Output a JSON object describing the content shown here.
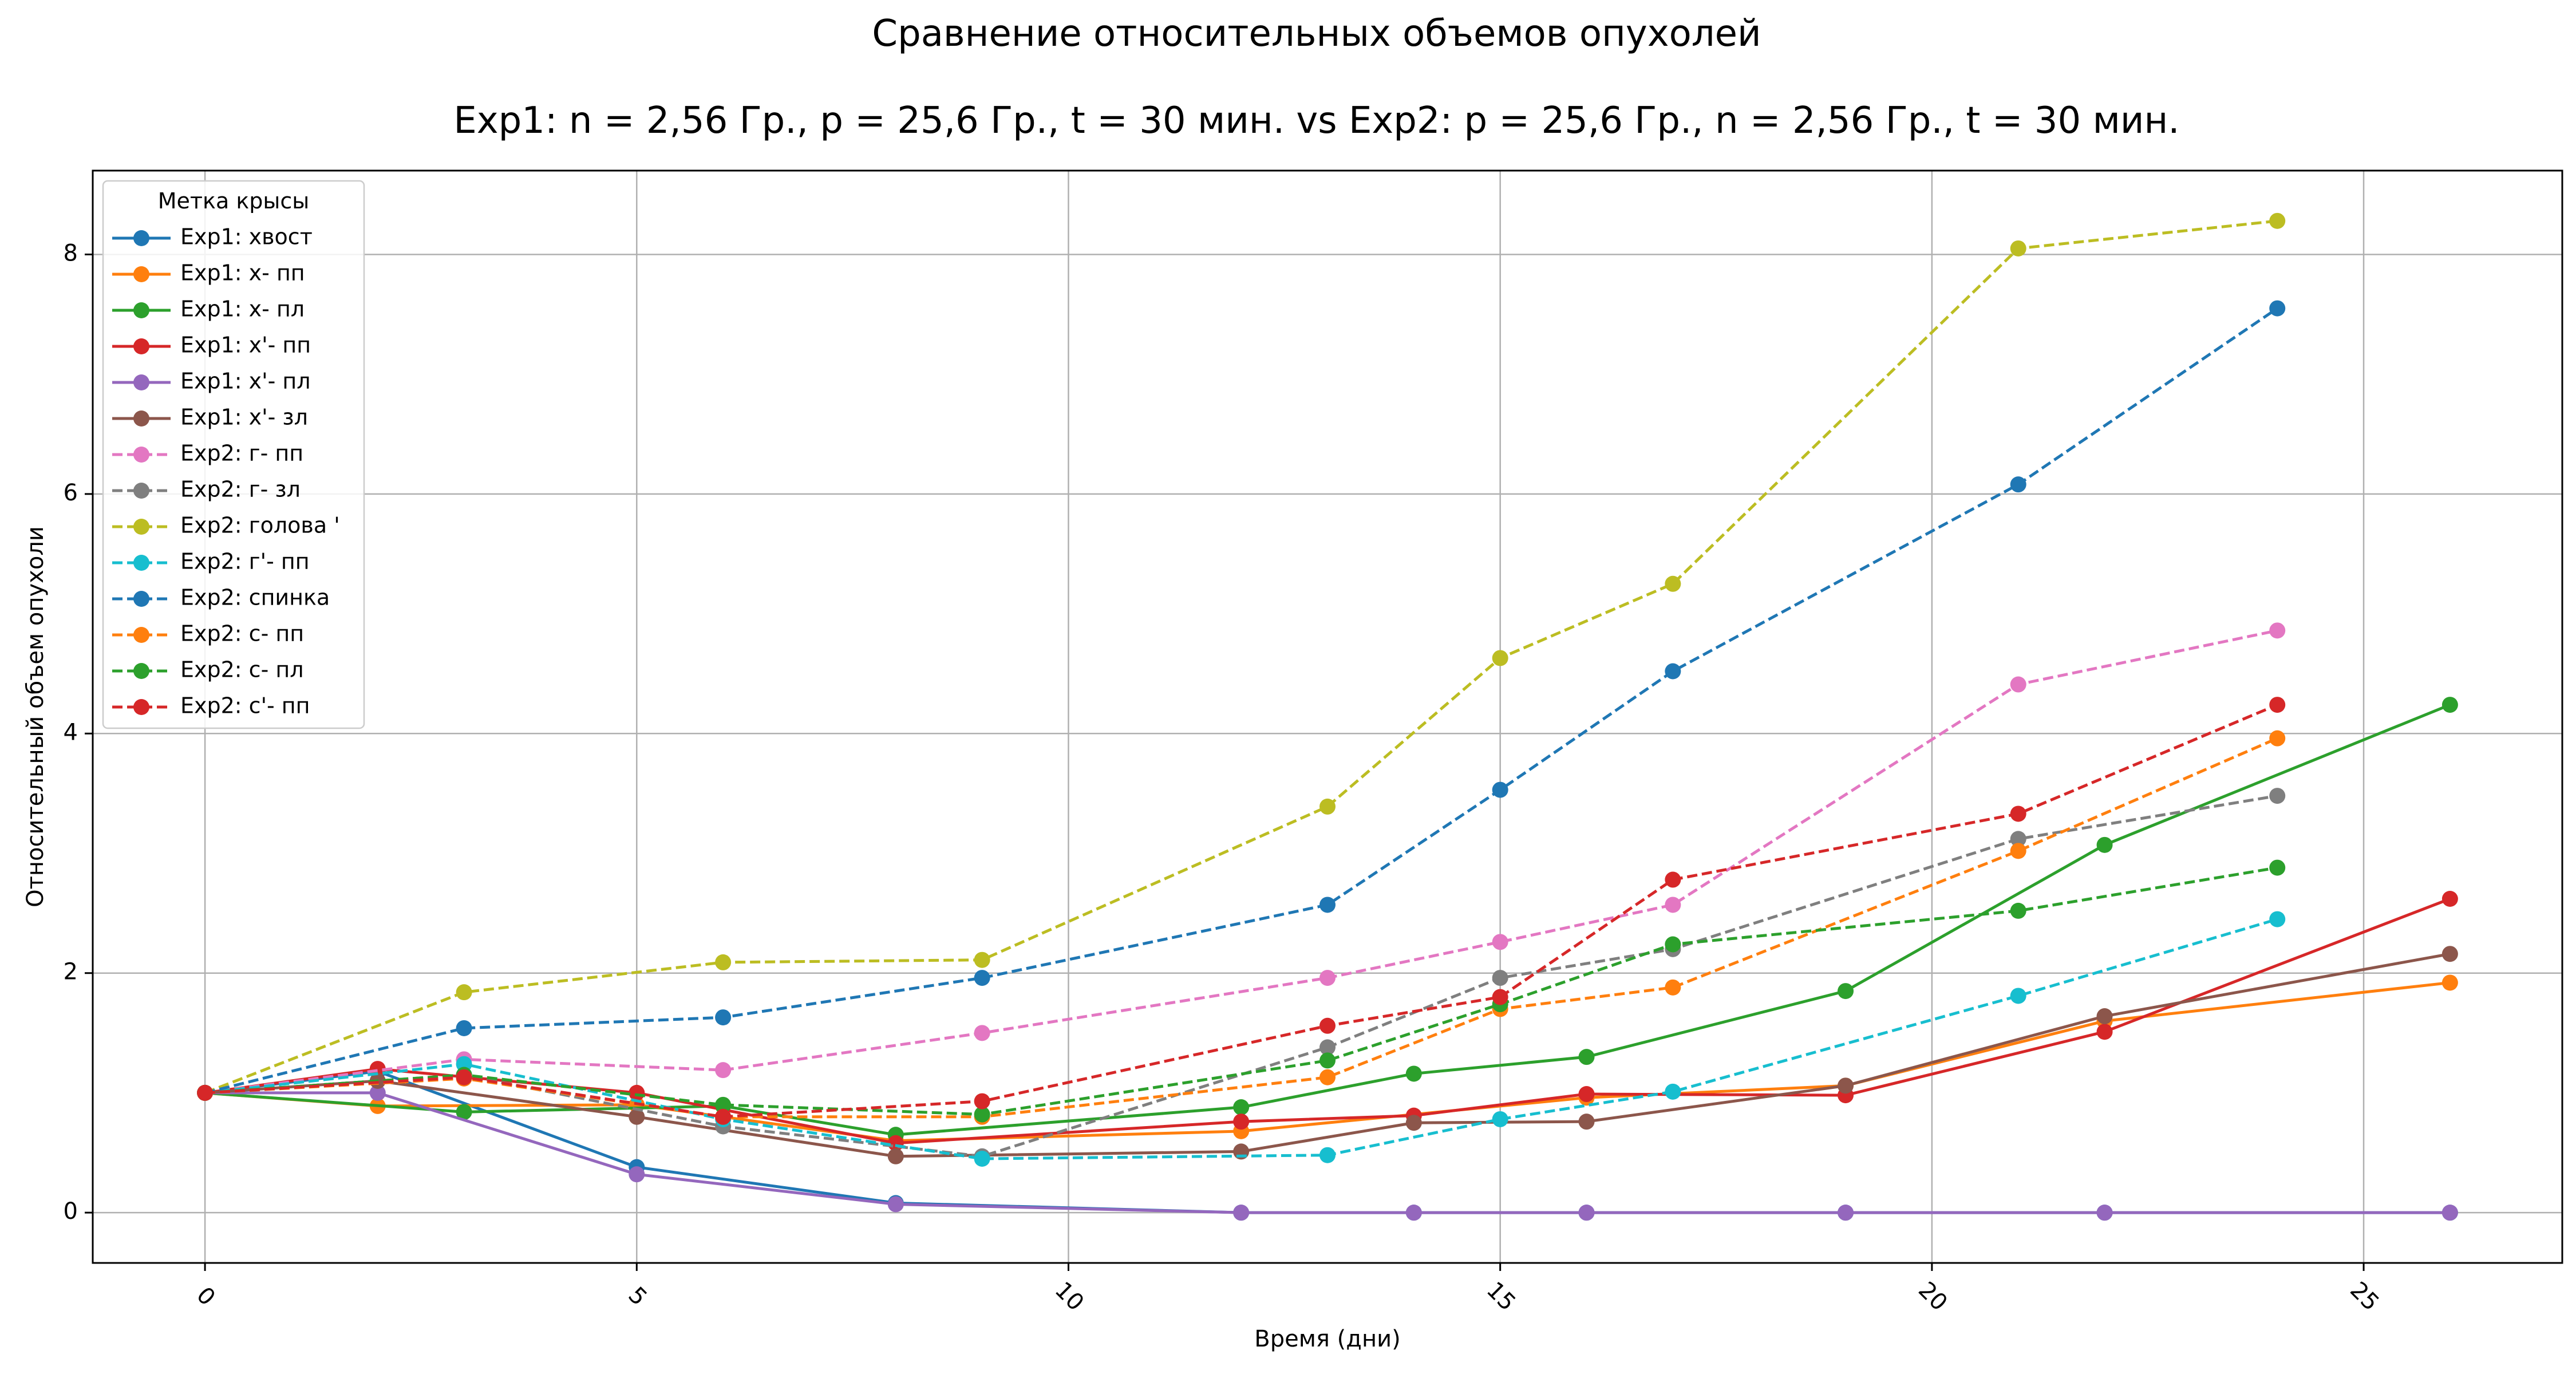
{
  "chart_data": {
    "type": "line",
    "title": "Сравнение относительных объемов опухолей",
    "subtitle": "Exp1: n = 2,56 Гр., p = 25,6 Гр., t = 30 мин. vs Exp2: p = 25,6 Гр., n = 2,56 Гр., t = 30 мин.",
    "xlabel": "Время (дни)",
    "ylabel": "Относительный объем опухоли",
    "xlim": [
      -1.3,
      27.3
    ],
    "ylim": [
      -0.42,
      8.7
    ],
    "xticks": [
      0,
      5,
      10,
      15,
      20,
      25
    ],
    "yticks": [
      0,
      2,
      4,
      6,
      8
    ],
    "grid": true,
    "legend_title": "Метка крысы",
    "legend_position": "top-left",
    "series": [
      {
        "name": "Exp1: хвост",
        "style": "solid",
        "color": "#1f77b4",
        "x": [
          0,
          2,
          5,
          8,
          12,
          14,
          16,
          19,
          22,
          26
        ],
        "y": [
          1.0,
          1.18,
          0.38,
          0.08,
          0.0,
          0.0,
          0.0,
          0.0,
          0.0,
          0.0
        ]
      },
      {
        "name": "Exp1: х- пп",
        "style": "solid",
        "color": "#ff7f0e",
        "x": [
          0,
          2,
          5,
          8,
          12,
          16,
          19,
          22,
          26
        ],
        "y": [
          1.0,
          0.89,
          0.9,
          0.6,
          0.68,
          0.96,
          1.06,
          1.6,
          1.92
        ]
      },
      {
        "name": "Exp1: х- пл",
        "style": "solid",
        "color": "#2ca02c",
        "x": [
          0,
          3,
          6,
          8,
          12,
          14,
          16,
          19,
          22,
          26
        ],
        "y": [
          1.0,
          0.84,
          0.89,
          0.65,
          0.88,
          1.16,
          1.3,
          1.85,
          3.07,
          4.24
        ]
      },
      {
        "name": "Exp1: х'- пп",
        "style": "solid",
        "color": "#d62728",
        "x": [
          0,
          2,
          5,
          8,
          12,
          14,
          16,
          19,
          22,
          26
        ],
        "y": [
          1.0,
          1.2,
          1.0,
          0.58,
          0.76,
          0.81,
          0.99,
          0.98,
          1.51,
          2.62
        ]
      },
      {
        "name": "Exp1: х'- пл",
        "style": "solid",
        "color": "#9467bd",
        "x": [
          0,
          2,
          5,
          8,
          12,
          14,
          16,
          19,
          22,
          26
        ],
        "y": [
          1.0,
          1.0,
          0.32,
          0.07,
          0.0,
          0.0,
          0.0,
          0.0,
          0.0,
          0.0
        ]
      },
      {
        "name": "Exp1: х'- зл",
        "style": "solid",
        "color": "#8c564b",
        "x": [
          0,
          2,
          5,
          8,
          12,
          14,
          16,
          19,
          22,
          26
        ],
        "y": [
          1.0,
          1.1,
          0.8,
          0.47,
          0.51,
          0.75,
          0.76,
          1.06,
          1.64,
          2.16
        ]
      },
      {
        "name": "Exp2: г- пп",
        "style": "dashed",
        "color": "#e377c2",
        "x": [
          0,
          3,
          6,
          9,
          13,
          15,
          17,
          21,
          24
        ],
        "y": [
          1.0,
          1.28,
          1.19,
          1.5,
          1.96,
          2.26,
          2.57,
          4.41,
          4.86
        ]
      },
      {
        "name": "Exp2: г- зл",
        "style": "dashed",
        "color": "#7f7f7f",
        "x": [
          0,
          3,
          6,
          9,
          13,
          15,
          17,
          21,
          24
        ],
        "y": [
          1.0,
          1.15,
          0.72,
          0.47,
          1.38,
          1.96,
          2.2,
          3.12,
          3.48
        ]
      },
      {
        "name": "Exp2: голова '",
        "style": "dashed",
        "color": "#bcbd22",
        "x": [
          0,
          3,
          6,
          9,
          13,
          15,
          17,
          21,
          24
        ],
        "y": [
          1.0,
          1.84,
          2.09,
          2.11,
          3.39,
          4.63,
          5.25,
          8.05,
          8.28
        ]
      },
      {
        "name": "Exp2: г'- пп",
        "style": "dashed",
        "color": "#17becf",
        "x": [
          0,
          3,
          6,
          9,
          13,
          15,
          17,
          21,
          24
        ],
        "y": [
          1.0,
          1.24,
          0.78,
          0.45,
          0.48,
          0.78,
          1.01,
          1.81,
          2.45
        ]
      },
      {
        "name": "Exp2: спинка",
        "style": "dashed",
        "color": "#1f77b4",
        "x": [
          0,
          3,
          6,
          9,
          13,
          15,
          17,
          21,
          24
        ],
        "y": [
          1.0,
          1.54,
          1.63,
          1.96,
          2.57,
          3.53,
          4.52,
          6.08,
          7.55
        ]
      },
      {
        "name": "Exp2: с- пп",
        "style": "dashed",
        "color": "#ff7f0e",
        "x": [
          0,
          3,
          6,
          9,
          13,
          15,
          17,
          21,
          24
        ],
        "y": [
          1.0,
          1.12,
          0.8,
          0.8,
          1.13,
          1.7,
          1.88,
          3.02,
          3.96
        ]
      },
      {
        "name": "Exp2: с- пл",
        "style": "dashed",
        "color": "#2ca02c",
        "x": [
          0,
          3,
          6,
          9,
          13,
          15,
          17,
          21,
          24
        ],
        "y": [
          1.0,
          1.15,
          0.9,
          0.82,
          1.27,
          1.74,
          2.24,
          2.52,
          2.88
        ]
      },
      {
        "name": "Exp2: с'- пп",
        "style": "dashed",
        "color": "#d62728",
        "x": [
          0,
          3,
          6,
          9,
          13,
          15,
          17,
          21,
          24
        ],
        "y": [
          1.0,
          1.13,
          0.8,
          0.93,
          1.56,
          1.8,
          2.78,
          3.33,
          4.24
        ]
      }
    ]
  }
}
